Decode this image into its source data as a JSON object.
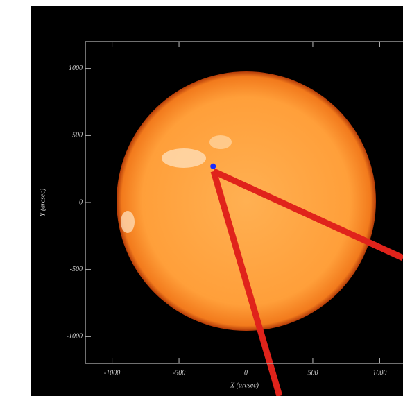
{
  "chart_data": {
    "type": "image",
    "xlabel": "X (arcsec)",
    "ylabel": "Y (arcsec)",
    "xlim": [
      -1200,
      1200
    ],
    "ylim": [
      -1200,
      1200
    ],
    "xticks": [
      -1000,
      -500,
      0,
      500,
      1000
    ],
    "yticks": [
      -1000,
      -500,
      0,
      500,
      1000
    ],
    "series": [
      {
        "x": [
          -245
        ],
        "values": [
          270
        ],
        "color": "#1a2cff"
      }
    ]
  }
}
